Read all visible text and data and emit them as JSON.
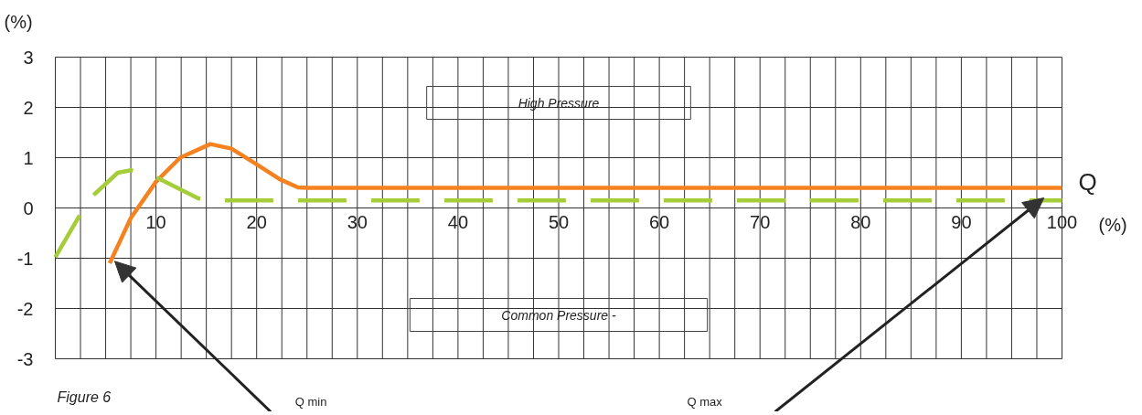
{
  "chart_data": {
    "type": "line",
    "xlabel": "Q",
    "ylabel": "(%)",
    "xlim": [
      0,
      100
    ],
    "ylim": [
      -3,
      3
    ],
    "xticks": [
      {
        "value": 0,
        "label": null
      },
      {
        "value": 2.5,
        "label": null
      },
      {
        "value": 5,
        "label": null
      },
      {
        "value": 7.5,
        "label": null
      },
      10,
      {
        "value": 12.5,
        "label": null
      },
      {
        "value": 15,
        "label": null
      },
      {
        "value": 17.5,
        "label": null
      },
      20,
      {
        "value": 22.5,
        "label": null
      },
      {
        "value": 25,
        "label": null
      },
      {
        "value": 27.5,
        "label": null
      },
      30,
      {
        "value": 32.5,
        "label": null
      },
      {
        "value": 35,
        "label": null
      },
      {
        "value": 37.5,
        "label": null
      },
      40,
      {
        "value": 42.5,
        "label": null
      },
      {
        "value": 45,
        "label": null
      },
      {
        "value": 47.5,
        "label": null
      },
      50,
      {
        "value": 52.5,
        "label": null
      },
      {
        "value": 55,
        "label": null
      },
      {
        "value": 57.5,
        "label": null
      },
      60,
      {
        "value": 62.5,
        "label": null
      },
      {
        "value": 65,
        "label": null
      },
      {
        "value": 67.5,
        "label": null
      },
      70,
      {
        "value": 72.5,
        "label": null
      },
      {
        "value": 75,
        "label": null
      },
      {
        "value": 77.5,
        "label": null
      },
      80,
      {
        "value": 82.5,
        "label": null
      },
      {
        "value": 85,
        "label": null
      },
      {
        "value": 87.5,
        "label": null
      },
      90,
      {
        "value": 92.5,
        "label": null
      },
      {
        "value": 95,
        "label": null
      },
      {
        "value": 97.5,
        "label": null
      },
      100
    ],
    "yticks": [
      -3,
      -2,
      -1,
      0,
      1,
      2,
      3
    ],
    "grid": true,
    "marker": "none",
    "series": [
      {
        "color": "#f58220",
        "line_style": "solid",
        "x": [
          5.4,
          7.5,
          10,
          12.4,
          15.4,
          17.5,
          19.9,
          22.3,
          24.1,
          25,
          100
        ],
        "values": [
          -1.1,
          -0.2,
          0.52,
          1.0,
          1.27,
          1.18,
          0.88,
          0.57,
          0.41,
          0.4,
          0.4
        ]
      },
      {
        "color": "#a5cd39",
        "line_style": "dashed",
        "x": [
          0,
          2.35,
          3.6,
          6.2,
          7.5,
          10,
          14.2,
          16,
          100
        ],
        "values": [
          -0.98,
          -0.17,
          0.22,
          0.7,
          0.75,
          0.61,
          0.19,
          0.15,
          0.15
        ]
      }
    ],
    "annotations": [
      "Figure 6",
      "(%)",
      "High Pressure",
      "Common Pressure -",
      "Q min",
      "Q max"
    ]
  }
}
